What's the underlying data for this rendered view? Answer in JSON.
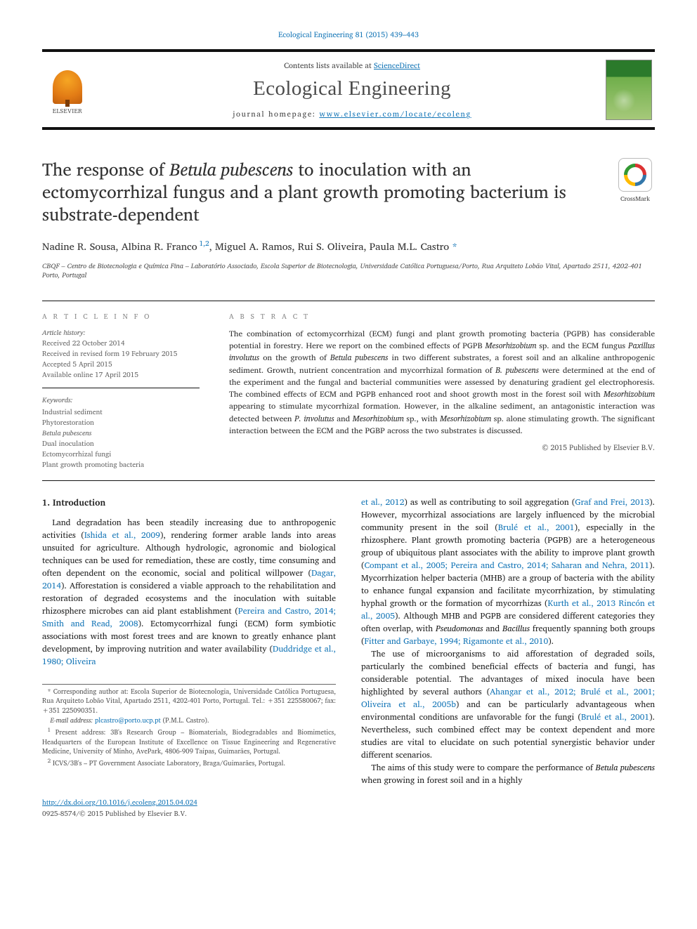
{
  "topline": {
    "journal_ref": "Ecological Engineering 81 (2015) 439–443",
    "link_color": "#1576b7"
  },
  "header": {
    "contents_prefix": "Contents lists available at ",
    "contents_link": "ScienceDirect",
    "journal_name": "Ecological Engineering",
    "homepage_prefix": "journal homepage: ",
    "homepage_url": "www.elsevier.com/locate/ecoleng",
    "elsevier_label": "ELSEVIER"
  },
  "cover": {
    "top_color": "#2b7a2b",
    "bottom_color": "#a6c97a"
  },
  "article": {
    "title_html": "The response of <i>Betula pubescens</i> to inoculation with an ectomycorrhizal fungus and a plant growth promoting bacterium is substrate-dependent",
    "crossmark_label": "CrossMark"
  },
  "authors": {
    "line_html": "Nadine R. Sousa, Albina R. Franco<sup> 1,2</sup>, Miguel A. Ramos, Rui S. Oliveira, Paula M.L. Castro<span class='star'> *</span>",
    "affiliation": "CBQF – Centro de Biotecnologia e Química Fina – Laboratório Associado, Escola Superior de Biotecnologia, Universidade Católica Portuguesa/Porto, Rua Arquiteto Lobão Vital, Apartado 2511, 4202-401 Porto, Portugal"
  },
  "meta": {
    "info_heading": "A R T I C L E   I N F O",
    "history_label": "Article history:",
    "history": [
      "Received 22 October 2014",
      "Received in revised form 19 February 2015",
      "Accepted 5 April 2015",
      "Available online 17 April 2015"
    ],
    "keywords_label": "Keywords:",
    "keywords": [
      "Industrial sediment",
      "Phytorestoration",
      "Betula pubescens",
      "Dual inoculation",
      "Ectomycorrhizal fungi",
      "Plant growth promoting bacteria"
    ],
    "abstract_heading": "A B S T R A C T",
    "abstract_html": "The combination of ectomycorrhizal (ECM) fungi and plant growth promoting bacteria (PGPB) has considerable potential in forestry. Here we report on the combined effects of PGPB <i>Mesorhizobium</i> sp. and the ECM fungus <i>Paxillus involutus</i> on the growth of <i>Betula pubescens</i> in two different substrates, a forest soil and an alkaline anthropogenic sediment. Growth, nutrient concentration and mycorrhizal formation of <i>B. pubescens</i> were determined at the end of the experiment and the fungal and bacterial communities were assessed by denaturing gradient gel electrophoresis. The combined effects of ECM and PGPB enhanced root and shoot growth most in the forest soil with <i>Mesorhizobium</i> appearing to stimulate mycorrhizal formation. However, in the alkaline sediment, an antagonistic interaction was detected between <i>P. involutus</i> and <i>Mesorhizobium</i> sp., with <i>Mesorhizobium</i> sp. alone stimulating growth. The significant interaction between the ECM and the PGBP across the two substrates is discussed.",
    "copyright": "© 2015 Published by Elsevier B.V."
  },
  "body": {
    "intro_heading": "1. Introduction",
    "col1_html": "Land degradation has been steadily increasing due to anthropogenic activities (<a href='#'>Ishida et al., 2009</a>), rendering former arable lands into areas unsuited for agriculture. Although hydrologic, agronomic and biological techniques can be used for remediation, these are costly, time consuming and often dependent on the economic, social and political willpower (<a href='#'>Dagar, 2014</a>). Afforestation is considered a viable approach to the rehabilitation and restoration of degraded ecosystems and the inoculation with suitable rhizosphere microbes can aid plant establishment (<a href='#'>Pereira and Castro, 2014; Smith and Read, 2008</a>). Ectomycorrhizal fungi (ECM) form symbiotic associations with most forest trees and are known to greatly enhance plant development, by improving nutrition and water availability (<a href='#'>Duddridge et al., 1980; Oliveira</a>",
    "col2_p1_html": "<a href='#'>et al., 2012</a>) as well as contributing to soil aggregation (<a href='#'>Graf and Frei, 2013</a>). However, mycorrhizal associations are largely influenced by the microbial community present in the soil (<a href='#'>Brulé et al., 2001</a>), especially in the rhizosphere. Plant growth promoting bacteria (PGPB) are a heterogeneous group of ubiquitous plant associates with the ability to improve plant growth (<a href='#'>Compant et al., 2005; Pereira and Castro, 2014; Saharan and Nehra, 2011</a>). Mycorrhization helper bacteria (MHB) are a group of bacteria with the ability to enhance fungal expansion and facilitate mycorrhization, by stimulating hyphal growth or the formation of mycorrhizas (<a href='#'>Kurth et al., 2013 Rincón et al., 2005</a>). Although MHB and PGPB are considered different categories they often overlap, with <i>Pseudomonas</i> and <i>Bacillus</i> frequently spanning both groups (<a href='#'>Fitter and Garbaye, 1994; Rigamonte et al., 2010</a>).",
    "col2_p2_html": "The use of microorganisms to aid afforestation of degraded soils, particularly the combined beneficial effects of bacteria and fungi, has considerable potential. The advantages of mixed inocula have been highlighted by several authors (<a href='#'>Ahangar et al., 2012; Brulé et al., 2001; Oliveira et al., 2005b</a>) and can be particularly advantageous when environmental conditions are unfavorable for the fungi (<a href='#'>Brulé et al., 2001</a>). Nevertheless, such combined effect may be context dependent and more studies are vital to elucidate on such potential synergistic behavior under different scenarios.",
    "col2_p3_html": "The aims of this study were to compare the performance of <i>Betula pubescens</i> when growing in forest soil and in a highly"
  },
  "footnotes": {
    "corresp": "* Corresponding author at: Escola Superior de Biotecnologia, Universidade Católica Portuguesa, Rua Arquiteto Lobão Vital, Apartado 2511, 4202-401 Porto, Portugal. Tel.: +351 225580067; fax: +351 225090351.",
    "email_label": "E-mail address: ",
    "email": "plcastro@porto.ucp.pt",
    "email_suffix": " (P.M.L. Castro).",
    "note1": "Present address: 3B's Research Group – Biomaterials, Biodegradables and Biomimetics, Headquarters of the European Institute of Excellence on Tissue Engineering and Regenerative Medicine, University of Minho, AvePark, 4806-909 Taipas, Guimarães, Portugal.",
    "note2": "ICVS/3B's – PT Government Associate Laboratory, Braga/Guimarães, Portugal."
  },
  "bottom": {
    "doi": "http://dx.doi.org/10.1016/j.ecoleng.2015.04.024",
    "issn_line": "0925-8574/© 2015 Published by Elsevier B.V."
  },
  "colors": {
    "link": "#1576b7",
    "rule": "#111111",
    "text": "#222222",
    "meta_text": "#666666"
  },
  "typography": {
    "body_font": "Georgia, 'Times New Roman', serif",
    "title_size_pt": 18,
    "journal_name_size_pt": 22,
    "body_size_pt": 9,
    "abstract_size_pt": 8.5
  }
}
